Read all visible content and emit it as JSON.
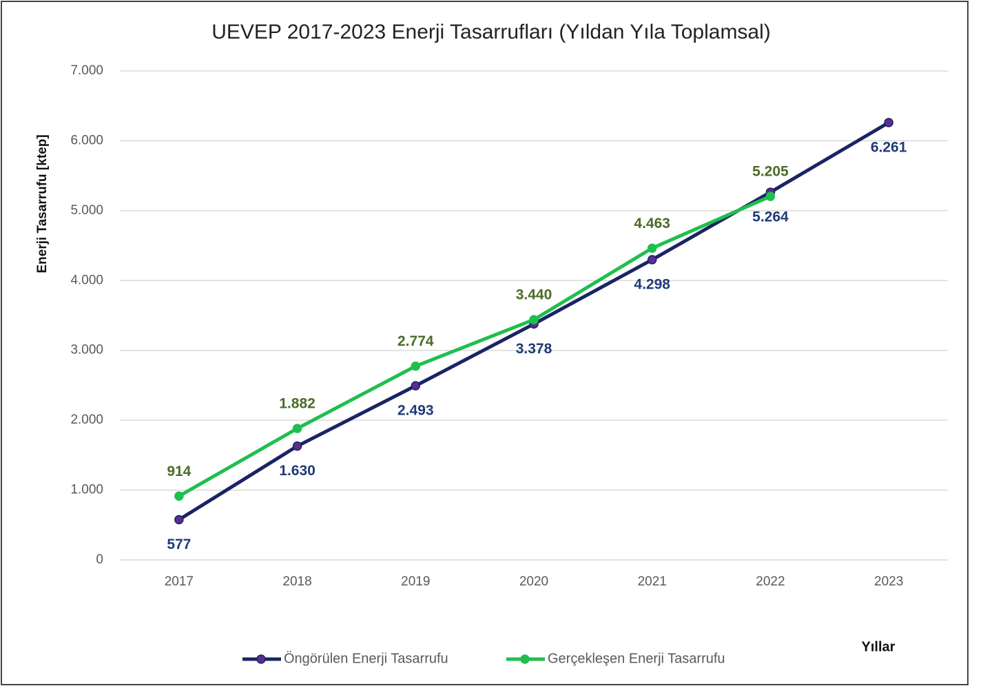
{
  "chart_data": {
    "type": "line",
    "title": "UEVEP 2017-2023 Enerji Tasarrufları (Yıldan Yıla Toplamsal)",
    "y_label": "Enerji Tasarrufu  [ktep]",
    "x_label": "Yıllar",
    "categories": [
      "2017",
      "2018",
      "2019",
      "2020",
      "2021",
      "2022",
      "2023"
    ],
    "series": [
      {
        "name": "Öngörülen Enerji Tasarrufu",
        "color": "#1b2463",
        "marker_color": "#5a2d91",
        "label_color": "#1f3a7a",
        "values": [
          577,
          1630,
          2493,
          3378,
          4298,
          5264,
          6261
        ],
        "value_labels": [
          "577",
          "1.630",
          "2.493",
          "3.378",
          "4.298",
          "5.264",
          "6.261"
        ]
      },
      {
        "name": "Gerçekleşen Enerji Tasarrufu",
        "color": "#1fbf4e",
        "marker_color": "#1fbf4e",
        "label_color": "#4a6b26",
        "values": [
          914,
          1882,
          2774,
          3440,
          4463,
          5205,
          null
        ],
        "value_labels": [
          "914",
          "1.882",
          "2.774",
          "3.440",
          "4.463",
          "5.205",
          null
        ]
      }
    ],
    "ylim": [
      0,
      7000
    ],
    "yticks": [
      0,
      {
        "value": 1000,
        "label": "1.000"
      },
      {
        "value": 2000,
        "label": "2.000"
      },
      {
        "value": 3000,
        "label": "3.000"
      },
      {
        "value": 4000,
        "label": "4.000"
      },
      {
        "value": 5000,
        "label": "5.000"
      },
      {
        "value": 6000,
        "label": "6.000"
      },
      {
        "value": 7000,
        "label": "7.000"
      }
    ],
    "grid": true,
    "legend": "bottom"
  }
}
